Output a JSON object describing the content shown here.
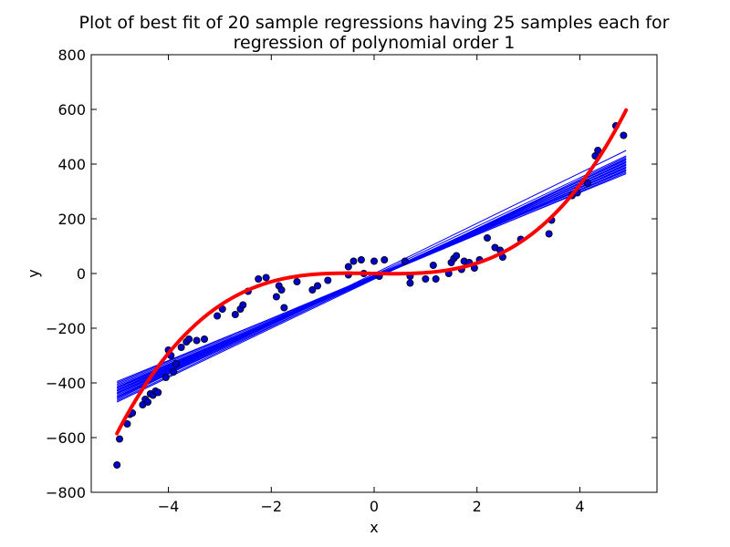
{
  "chart_data": {
    "type": "scatter",
    "title_line1": "Plot of best fit of 20 sample regressions having 25 samples each for",
    "title_line2": "regression of polynomial order 1",
    "xlabel": "x",
    "ylabel": "y",
    "xlim": [
      -5.5,
      5.5
    ],
    "ylim": [
      -800,
      800
    ],
    "xticks": [
      -4,
      -2,
      0,
      2,
      4
    ],
    "yticks": [
      -800,
      -600,
      -400,
      -200,
      0,
      200,
      400,
      600,
      800
    ],
    "grid": false,
    "colors": {
      "points": "#0000cc",
      "point_edge": "#000000",
      "fit_lines": "#0000ff",
      "true_curve": "#ff0000"
    },
    "true_curve": {
      "name": "",
      "x_range": [
        -5,
        4.9
      ],
      "coefficients": {
        "cubic": 5,
        "quadratic": 1,
        "linear": -3,
        "constant": 0
      }
    },
    "fit_lines": [
      {
        "x": [
          -5,
          4.9
        ],
        "y": [
          -470,
          420
        ]
      },
      {
        "x": [
          -5,
          4.9
        ],
        "y": [
          -455,
          410
        ]
      },
      {
        "x": [
          -5,
          4.9
        ],
        "y": [
          -440,
          400
        ]
      },
      {
        "x": [
          -5,
          4.9
        ],
        "y": [
          -430,
          390
        ]
      },
      {
        "x": [
          -5,
          4.9
        ],
        "y": [
          -420,
          380
        ]
      },
      {
        "x": [
          -5,
          4.9
        ],
        "y": [
          -410,
          370
        ]
      },
      {
        "x": [
          -5,
          4.9
        ],
        "y": [
          -395,
          365
        ]
      },
      {
        "x": [
          -5,
          4.9
        ],
        "y": [
          -460,
          450
        ]
      },
      {
        "x": [
          -5,
          4.9
        ],
        "y": [
          -450,
          430
        ]
      },
      {
        "x": [
          -5,
          4.9
        ],
        "y": [
          -445,
          415
        ]
      },
      {
        "x": [
          -5,
          4.9
        ],
        "y": [
          -435,
          405
        ]
      },
      {
        "x": [
          -5,
          4.9
        ],
        "y": [
          -425,
          395
        ]
      },
      {
        "x": [
          -5,
          4.9
        ],
        "y": [
          -415,
          385
        ]
      },
      {
        "x": [
          -5,
          4.9
        ],
        "y": [
          -405,
          375
        ]
      },
      {
        "x": [
          -5,
          4.9
        ],
        "y": [
          -465,
          425
        ]
      },
      {
        "x": [
          -5,
          4.9
        ],
        "y": [
          -452,
          418
        ]
      },
      {
        "x": [
          -5,
          4.9
        ],
        "y": [
          -438,
          408
        ]
      },
      {
        "x": [
          -5,
          4.9
        ],
        "y": [
          -428,
          398
        ]
      },
      {
        "x": [
          -5,
          4.9
        ],
        "y": [
          -418,
          388
        ]
      },
      {
        "x": [
          -5,
          4.9
        ],
        "y": [
          -400,
          378
        ]
      }
    ],
    "points": [
      [
        -5.0,
        -700
      ],
      [
        -4.95,
        -605
      ],
      [
        -4.8,
        -550
      ],
      [
        -4.75,
        -515
      ],
      [
        -4.7,
        -510
      ],
      [
        -4.5,
        -480
      ],
      [
        -4.45,
        -460
      ],
      [
        -4.4,
        -470
      ],
      [
        -4.35,
        -440
      ],
      [
        -4.3,
        -445
      ],
      [
        -4.25,
        -430
      ],
      [
        -4.2,
        -435
      ],
      [
        -4.05,
        -380
      ],
      [
        -4.0,
        -280
      ],
      [
        -3.95,
        -300
      ],
      [
        -3.9,
        -360
      ],
      [
        -3.85,
        -330
      ],
      [
        -3.75,
        -270
      ],
      [
        -3.65,
        -250
      ],
      [
        -3.6,
        -240
      ],
      [
        -3.45,
        -245
      ],
      [
        -3.3,
        -240
      ],
      [
        -3.05,
        -155
      ],
      [
        -2.95,
        -130
      ],
      [
        -2.7,
        -150
      ],
      [
        -2.6,
        -130
      ],
      [
        -2.55,
        -115
      ],
      [
        -2.45,
        -65
      ],
      [
        -2.25,
        -20
      ],
      [
        -2.1,
        -15
      ],
      [
        -1.9,
        -85
      ],
      [
        -1.85,
        -45
      ],
      [
        -1.8,
        -60
      ],
      [
        -1.75,
        -125
      ],
      [
        -1.5,
        -30
      ],
      [
        -1.2,
        -60
      ],
      [
        -1.1,
        -45
      ],
      [
        -0.9,
        -25
      ],
      [
        -0.5,
        -5
      ],
      [
        -0.5,
        25
      ],
      [
        -0.4,
        45
      ],
      [
        -0.25,
        50
      ],
      [
        -0.2,
        0
      ],
      [
        0.0,
        45
      ],
      [
        0.1,
        -10
      ],
      [
        0.2,
        50
      ],
      [
        0.6,
        45
      ],
      [
        0.7,
        -35
      ],
      [
        0.7,
        -10
      ],
      [
        1.0,
        -20
      ],
      [
        1.15,
        30
      ],
      [
        1.2,
        -20
      ],
      [
        1.45,
        0
      ],
      [
        1.5,
        40
      ],
      [
        1.55,
        55
      ],
      [
        1.6,
        65
      ],
      [
        1.7,
        15
      ],
      [
        1.75,
        45
      ],
      [
        1.85,
        40
      ],
      [
        1.95,
        20
      ],
      [
        2.05,
        50
      ],
      [
        2.2,
        130
      ],
      [
        2.35,
        95
      ],
      [
        2.45,
        85
      ],
      [
        2.5,
        60
      ],
      [
        2.85,
        125
      ],
      [
        3.4,
        145
      ],
      [
        3.45,
        195
      ],
      [
        3.85,
        285
      ],
      [
        3.95,
        295
      ],
      [
        4.15,
        330
      ],
      [
        4.3,
        430
      ],
      [
        4.35,
        450
      ],
      [
        4.7,
        540
      ],
      [
        4.85,
        505
      ]
    ]
  }
}
